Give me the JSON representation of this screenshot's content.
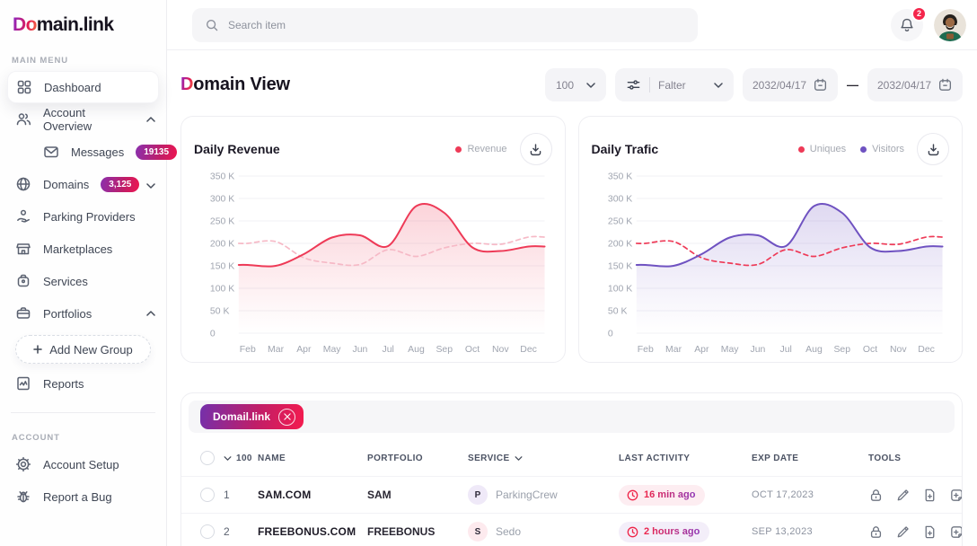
{
  "brand": {
    "logo_accent": "Do",
    "logo_rest": "main.link"
  },
  "topbar": {
    "search_placeholder": "Search item",
    "notification_count": "2"
  },
  "sidebar": {
    "main_menu_label": "MAIN MENU",
    "account_label": "ACCOUNT",
    "items": {
      "dashboard": "Dashboard",
      "account_overview": "Account Overview",
      "messages": "Messages",
      "messages_badge": "19135",
      "domains": "Domains",
      "domains_badge": "3,125",
      "parking_providers": "Parking Providers",
      "marketplaces": "Marketplaces",
      "services": "Services",
      "portfolios": "Portfolios",
      "add_new_group": "Add New Group",
      "reports": "Reports",
      "account_setup": "Account Setup",
      "report_a_bug": "Report a Bug"
    }
  },
  "page": {
    "title_accent": "D",
    "title_rest": "omain View"
  },
  "filters": {
    "page_size": "100",
    "filter_label": "Falter",
    "date_from": "2032/04/17",
    "date_to": "2032/04/17",
    "separator": "—"
  },
  "chart_data": [
    {
      "type": "line",
      "title": "Daily Revenue",
      "categories": [
        "Feb",
        "Mar",
        "Apr",
        "May",
        "Jun",
        "Jul",
        "Aug",
        "Sep",
        "Oct",
        "Nov",
        "Dec"
      ],
      "ytick_labels": [
        "350 K",
        "300 K",
        "250 K",
        "200 K",
        "150 K",
        "100 K",
        "50 K",
        "0"
      ],
      "ylim_k": [
        0,
        350
      ],
      "grid": true,
      "legend_position": "top-right",
      "legend": [
        {
          "label": "Revenue",
          "color": "#ee3a57"
        }
      ],
      "series": [
        {
          "name": "Revenue",
          "style": "solid",
          "color": "#ee3a57",
          "area_fill": true,
          "values_k": [
            152,
            150,
            176,
            213,
            218,
            194,
            283,
            268,
            191,
            183,
            193
          ]
        },
        {
          "name": "",
          "style": "dashed",
          "color": "#f6b9c6",
          "area_fill": false,
          "values_k": [
            200,
            204,
            168,
            156,
            153,
            186,
            171,
            190,
            200,
            198,
            214
          ]
        }
      ]
    },
    {
      "type": "line",
      "title": "Daily Trafic",
      "categories": [
        "Feb",
        "Mar",
        "Apr",
        "May",
        "Jun",
        "Jul",
        "Aug",
        "Sep",
        "Oct",
        "Nov",
        "Dec"
      ],
      "ytick_labels": [
        "350 K",
        "300 K",
        "250 K",
        "200 K",
        "150 K",
        "100 K",
        "50 K",
        "0"
      ],
      "ylim_k": [
        0,
        350
      ],
      "grid": true,
      "legend_position": "top-right",
      "legend": [
        {
          "label": "Uniques",
          "color": "#ee3a57"
        },
        {
          "label": "Visitors",
          "color": "#6f52c1"
        }
      ],
      "series": [
        {
          "name": "Visitors",
          "style": "solid",
          "color": "#6f52c1",
          "area_fill": true,
          "values_k": [
            152,
            150,
            176,
            213,
            218,
            194,
            283,
            268,
            191,
            183,
            193
          ]
        },
        {
          "name": "Uniques",
          "style": "dashed",
          "color": "#ee3a57",
          "area_fill": false,
          "values_k": [
            200,
            204,
            168,
            156,
            153,
            186,
            171,
            190,
            200,
            198,
            214
          ]
        }
      ]
    }
  ],
  "table": {
    "filter_tag": "Domail.link",
    "page_size": "100",
    "columns": [
      "NAME",
      "PORTFOLIO",
      "SERVICE",
      "LAST ACTIVITY",
      "EXP DATE",
      "TOOLS"
    ],
    "rows": [
      {
        "num": "1",
        "name": "SAM.COM",
        "portfolio": "SAM",
        "service_initial": "P",
        "service_name": "ParkingCrew",
        "service_bg": "#efe9f8",
        "activity": "16 min ago",
        "activity_bg": "#fdedf1",
        "exp_date": "OCT 17,2023"
      },
      {
        "num": "2",
        "name": "FREEBONUS.COM",
        "portfolio": "FREEBONUS",
        "service_initial": "S",
        "service_name": "Sedo",
        "service_bg": "#fdeaee",
        "activity": "2 hours ago",
        "activity_bg": "#f3eef9",
        "exp_date": "SEP 13,2023"
      }
    ],
    "tools": [
      "lock",
      "edit",
      "file-add",
      "note-add"
    ]
  },
  "colors": {
    "accent_red": "#ee3a57",
    "accent_purple": "#6f52c1",
    "brand_gradient": [
      "#8426c9",
      "#e11b56",
      "#f4703e"
    ],
    "badge_gradient": [
      "#8a30ae",
      "#ee1650"
    ],
    "notification_red": "#f4254b"
  }
}
